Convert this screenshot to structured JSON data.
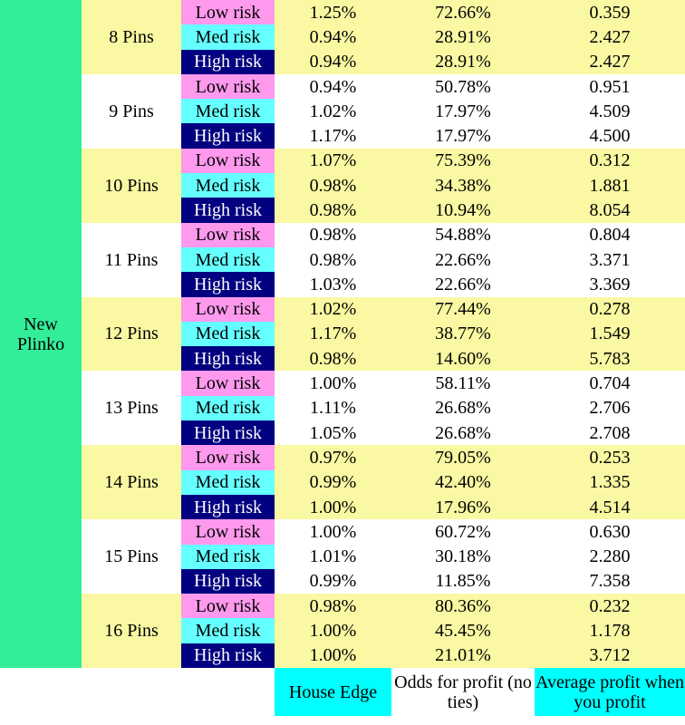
{
  "table": {
    "label": "New Plinko",
    "groups": [
      {
        "pins": "8 Pins",
        "rows": [
          {
            "risk": "Low risk",
            "house_edge": "1.25%",
            "odds": "72.66%",
            "avg_profit": "0.359"
          },
          {
            "risk": "Med risk",
            "house_edge": "0.94%",
            "odds": "28.91%",
            "avg_profit": "2.427"
          },
          {
            "risk": "High risk",
            "house_edge": "0.94%",
            "odds": "28.91%",
            "avg_profit": "2.427"
          }
        ]
      },
      {
        "pins": "9 Pins",
        "rows": [
          {
            "risk": "Low risk",
            "house_edge": "0.94%",
            "odds": "50.78%",
            "avg_profit": "0.951"
          },
          {
            "risk": "Med risk",
            "house_edge": "1.02%",
            "odds": "17.97%",
            "avg_profit": "4.509"
          },
          {
            "risk": "High risk",
            "house_edge": "1.17%",
            "odds": "17.97%",
            "avg_profit": "4.500"
          }
        ]
      },
      {
        "pins": "10 Pins",
        "rows": [
          {
            "risk": "Low risk",
            "house_edge": "1.07%",
            "odds": "75.39%",
            "avg_profit": "0.312"
          },
          {
            "risk": "Med risk",
            "house_edge": "0.98%",
            "odds": "34.38%",
            "avg_profit": "1.881"
          },
          {
            "risk": "High risk",
            "house_edge": "0.98%",
            "odds": "10.94%",
            "avg_profit": "8.054"
          }
        ]
      },
      {
        "pins": "11 Pins",
        "rows": [
          {
            "risk": "Low risk",
            "house_edge": "0.98%",
            "odds": "54.88%",
            "avg_profit": "0.804"
          },
          {
            "risk": "Med risk",
            "house_edge": "0.98%",
            "odds": "22.66%",
            "avg_profit": "3.371"
          },
          {
            "risk": "High risk",
            "house_edge": "1.03%",
            "odds": "22.66%",
            "avg_profit": "3.369"
          }
        ]
      },
      {
        "pins": "12 Pins",
        "rows": [
          {
            "risk": "Low risk",
            "house_edge": "1.02%",
            "odds": "77.44%",
            "avg_profit": "0.278"
          },
          {
            "risk": "Med risk",
            "house_edge": "1.17%",
            "odds": "38.77%",
            "avg_profit": "1.549"
          },
          {
            "risk": "High risk",
            "house_edge": "0.98%",
            "odds": "14.60%",
            "avg_profit": "5.783"
          }
        ]
      },
      {
        "pins": "13 Pins",
        "rows": [
          {
            "risk": "Low risk",
            "house_edge": "1.00%",
            "odds": "58.11%",
            "avg_profit": "0.704"
          },
          {
            "risk": "Med risk",
            "house_edge": "1.11%",
            "odds": "26.68%",
            "avg_profit": "2.706"
          },
          {
            "risk": "High risk",
            "house_edge": "1.05%",
            "odds": "26.68%",
            "avg_profit": "2.708"
          }
        ]
      },
      {
        "pins": "14 Pins",
        "rows": [
          {
            "risk": "Low risk",
            "house_edge": "0.97%",
            "odds": "79.05%",
            "avg_profit": "0.253"
          },
          {
            "risk": "Med risk",
            "house_edge": "0.99%",
            "odds": "42.40%",
            "avg_profit": "1.335"
          },
          {
            "risk": "High risk",
            "house_edge": "1.00%",
            "odds": "17.96%",
            "avg_profit": "4.514"
          }
        ]
      },
      {
        "pins": "15 Pins",
        "rows": [
          {
            "risk": "Low risk",
            "house_edge": "1.00%",
            "odds": "60.72%",
            "avg_profit": "0.630"
          },
          {
            "risk": "Med risk",
            "house_edge": "1.01%",
            "odds": "30.18%",
            "avg_profit": "2.280"
          },
          {
            "risk": "High risk",
            "house_edge": "0.99%",
            "odds": "11.85%",
            "avg_profit": "7.358"
          }
        ]
      },
      {
        "pins": "16 Pins",
        "rows": [
          {
            "risk": "Low risk",
            "house_edge": "0.98%",
            "odds": "80.36%",
            "avg_profit": "0.232"
          },
          {
            "risk": "Med risk",
            "house_edge": "1.00%",
            "odds": "45.45%",
            "avg_profit": "1.178"
          },
          {
            "risk": "High risk",
            "house_edge": "1.00%",
            "odds": "21.01%",
            "avg_profit": "3.712"
          }
        ]
      }
    ],
    "footer": {
      "house_edge": "House Edge",
      "odds": "Odds for profit (no ties)",
      "avg_profit": "Average profit when you profit"
    }
  }
}
